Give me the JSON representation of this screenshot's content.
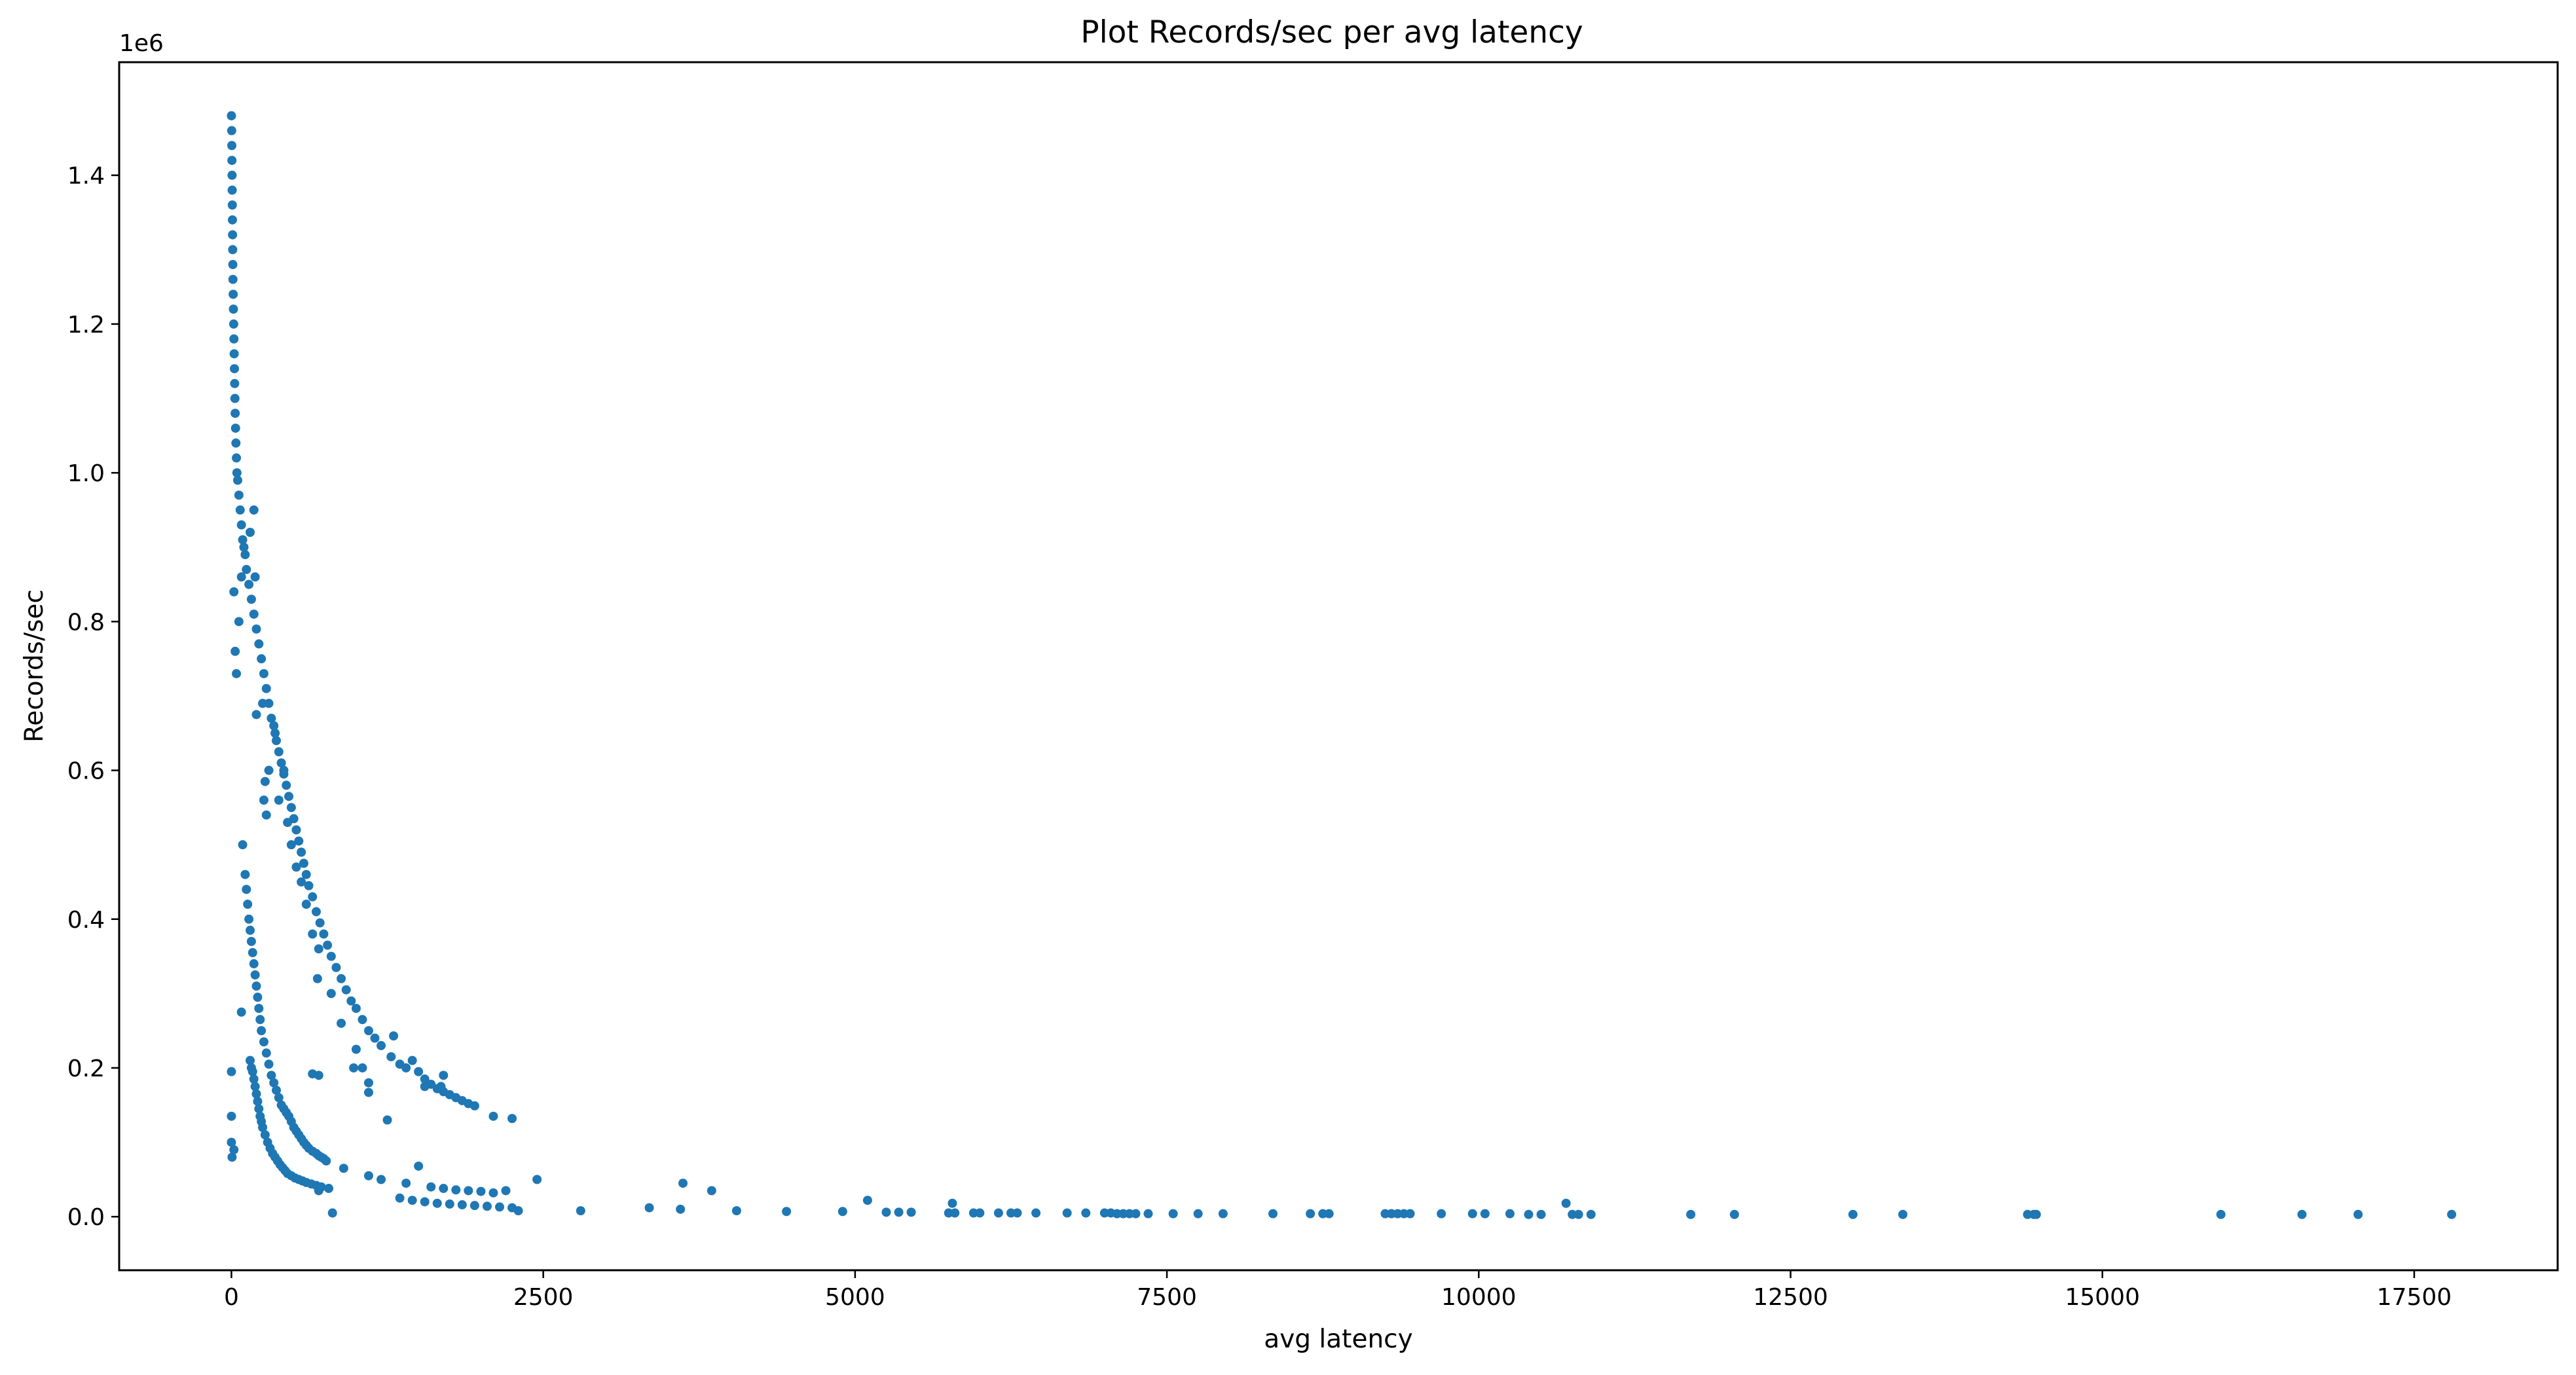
{
  "chart_data": {
    "type": "scatter",
    "title": "Plot Records/sec per avg latency",
    "xlabel": "avg latency",
    "ylabel": "Records/sec",
    "y_offset_label": "1e6",
    "xlim": [
      -900,
      18650
    ],
    "ylim": [
      -72000,
      1552000
    ],
    "xticks": [
      0,
      2500,
      5000,
      7500,
      10000,
      12500,
      15000,
      17500
    ],
    "xtick_labels": [
      "0",
      "2500",
      "5000",
      "7500",
      "10000",
      "12500",
      "15000",
      "17500"
    ],
    "yticks": [
      0,
      200000,
      400000,
      600000,
      800000,
      1000000,
      1200000,
      1400000
    ],
    "ytick_labels": [
      "0.0",
      "0.2",
      "0.4",
      "0.6",
      "0.8",
      "1.0",
      "1.2",
      "1.4"
    ],
    "grid": false,
    "legend": "none",
    "marker_color": "#1f77b4",
    "series": [
      {
        "points": [
          [
            0,
            1480000
          ],
          [
            2,
            1460000
          ],
          [
            3,
            1440000
          ],
          [
            4,
            1420000
          ],
          [
            5,
            1400000
          ],
          [
            6,
            1380000
          ],
          [
            7,
            1360000
          ],
          [
            8,
            1340000
          ],
          [
            9,
            1320000
          ],
          [
            10,
            1300000
          ],
          [
            11,
            1280000
          ],
          [
            12,
            1260000
          ],
          [
            14,
            1240000
          ],
          [
            16,
            1220000
          ],
          [
            18,
            1200000
          ],
          [
            20,
            1180000
          ],
          [
            22,
            1160000
          ],
          [
            24,
            1140000
          ],
          [
            26,
            1120000
          ],
          [
            28,
            1100000
          ],
          [
            30,
            1080000
          ],
          [
            33,
            1060000
          ],
          [
            36,
            1040000
          ],
          [
            40,
            1020000
          ],
          [
            44,
            1000000
          ],
          [
            50,
            990000
          ],
          [
            60,
            970000
          ],
          [
            70,
            950000
          ],
          [
            80,
            930000
          ],
          [
            90,
            910000
          ],
          [
            110,
            890000
          ],
          [
            120,
            870000
          ],
          [
            140,
            850000
          ],
          [
            160,
            830000
          ],
          [
            180,
            810000
          ],
          [
            200,
            790000
          ],
          [
            220,
            770000
          ],
          [
            240,
            750000
          ],
          [
            260,
            730000
          ],
          [
            280,
            710000
          ],
          [
            300,
            690000
          ],
          [
            320,
            670000
          ],
          [
            340,
            660000
          ],
          [
            360,
            640000
          ],
          [
            380,
            625000
          ],
          [
            400,
            610000
          ],
          [
            420,
            595000
          ],
          [
            440,
            580000
          ],
          [
            460,
            565000
          ],
          [
            480,
            550000
          ],
          [
            500,
            535000
          ],
          [
            520,
            520000
          ],
          [
            540,
            505000
          ],
          [
            560,
            490000
          ],
          [
            580,
            475000
          ],
          [
            600,
            460000
          ],
          [
            620,
            445000
          ],
          [
            650,
            430000
          ],
          [
            680,
            410000
          ],
          [
            710,
            395000
          ],
          [
            740,
            380000
          ],
          [
            770,
            365000
          ],
          [
            800,
            350000
          ],
          [
            840,
            335000
          ],
          [
            880,
            320000
          ],
          [
            920,
            305000
          ],
          [
            960,
            290000
          ],
          [
            1000,
            280000
          ],
          [
            1050,
            265000
          ],
          [
            1100,
            250000
          ],
          [
            1150,
            240000
          ],
          [
            1200,
            230000
          ],
          [
            1280,
            215000
          ],
          [
            1350,
            205000
          ],
          [
            1400,
            200000
          ],
          [
            1450,
            210000
          ],
          [
            1500,
            195000
          ],
          [
            1550,
            185000
          ],
          [
            1600,
            178000
          ],
          [
            1650,
            172000
          ],
          [
            1700,
            168000
          ],
          [
            1750,
            164000
          ],
          [
            1800,
            160000
          ],
          [
            1850,
            156000
          ],
          [
            1900,
            152000
          ],
          [
            1950,
            149000
          ],
          [
            2100,
            135000
          ],
          [
            2250,
            132000
          ],
          [
            1300,
            243000
          ],
          [
            1700,
            190000
          ],
          [
            1250,
            130000
          ],
          [
            1100,
            167000
          ],
          [
            20,
            840000
          ],
          [
            30,
            760000
          ],
          [
            40,
            730000
          ],
          [
            60,
            800000
          ],
          [
            80,
            860000
          ],
          [
            100,
            900000
          ],
          [
            150,
            920000
          ],
          [
            180,
            950000
          ],
          [
            190,
            860000
          ],
          [
            200,
            675000
          ],
          [
            250,
            690000
          ],
          [
            260,
            560000
          ],
          [
            280,
            540000
          ],
          [
            270,
            585000
          ],
          [
            300,
            600000
          ],
          [
            350,
            650000
          ],
          [
            380,
            560000
          ],
          [
            420,
            600000
          ],
          [
            450,
            530000
          ],
          [
            480,
            500000
          ],
          [
            520,
            470000
          ],
          [
            560,
            450000
          ],
          [
            600,
            420000
          ],
          [
            650,
            380000
          ],
          [
            700,
            360000
          ],
          [
            690,
            320000
          ],
          [
            800,
            300000
          ],
          [
            880,
            260000
          ],
          [
            1000,
            225000
          ],
          [
            1050,
            200000
          ],
          [
            1100,
            180000
          ],
          [
            1550,
            175000
          ],
          [
            1680,
            175000
          ],
          [
            980,
            200000
          ],
          [
            90,
            500000
          ],
          [
            110,
            460000
          ],
          [
            120,
            440000
          ],
          [
            130,
            420000
          ],
          [
            140,
            400000
          ],
          [
            150,
            385000
          ],
          [
            160,
            370000
          ],
          [
            170,
            355000
          ],
          [
            180,
            340000
          ],
          [
            190,
            325000
          ],
          [
            200,
            310000
          ],
          [
            210,
            295000
          ],
          [
            220,
            280000
          ],
          [
            230,
            265000
          ],
          [
            240,
            250000
          ],
          [
            260,
            235000
          ],
          [
            280,
            220000
          ],
          [
            300,
            205000
          ],
          [
            320,
            190000
          ],
          [
            340,
            180000
          ],
          [
            360,
            170000
          ],
          [
            380,
            160000
          ],
          [
            400,
            150000
          ],
          [
            420,
            145000
          ],
          [
            440,
            140000
          ],
          [
            460,
            135000
          ],
          [
            480,
            128000
          ],
          [
            500,
            120000
          ],
          [
            520,
            115000
          ],
          [
            540,
            110000
          ],
          [
            560,
            105000
          ],
          [
            580,
            100000
          ],
          [
            600,
            96000
          ],
          [
            620,
            92000
          ],
          [
            650,
            88000
          ],
          [
            680,
            85000
          ],
          [
            700,
            82000
          ],
          [
            720,
            80000
          ],
          [
            740,
            78000
          ],
          [
            760,
            75000
          ],
          [
            80,
            275000
          ],
          [
            650,
            192000
          ],
          [
            0,
            195000
          ],
          [
            0,
            135000
          ],
          [
            0,
            100000
          ],
          [
            5,
            80000
          ],
          [
            20,
            90000
          ],
          [
            700,
            190000
          ],
          [
            150,
            210000
          ],
          [
            160,
            200000
          ],
          [
            170,
            195000
          ],
          [
            180,
            185000
          ],
          [
            190,
            175000
          ],
          [
            200,
            165000
          ],
          [
            210,
            155000
          ],
          [
            220,
            145000
          ],
          [
            230,
            135000
          ],
          [
            240,
            128000
          ],
          [
            250,
            120000
          ],
          [
            270,
            110000
          ],
          [
            290,
            100000
          ],
          [
            310,
            92000
          ],
          [
            330,
            85000
          ],
          [
            350,
            80000
          ],
          [
            370,
            75000
          ],
          [
            390,
            70000
          ],
          [
            410,
            66000
          ],
          [
            430,
            62000
          ],
          [
            450,
            58000
          ],
          [
            480,
            55000
          ],
          [
            510,
            52000
          ],
          [
            540,
            50000
          ],
          [
            570,
            48000
          ],
          [
            600,
            46000
          ],
          [
            640,
            44000
          ],
          [
            680,
            42000
          ],
          [
            720,
            40000
          ],
          [
            780,
            38000
          ],
          [
            700,
            35000
          ],
          [
            810,
            5000
          ],
          [
            900,
            65000
          ],
          [
            1100,
            55000
          ],
          [
            1200,
            50000
          ],
          [
            1400,
            45000
          ],
          [
            1500,
            68000
          ],
          [
            1600,
            40000
          ],
          [
            1700,
            38000
          ],
          [
            1800,
            36000
          ],
          [
            1900,
            35000
          ],
          [
            2000,
            34000
          ],
          [
            2100,
            32000
          ],
          [
            2200,
            35000
          ],
          [
            2300,
            8000
          ],
          [
            1350,
            25000
          ],
          [
            1450,
            22000
          ],
          [
            1550,
            20000
          ],
          [
            1650,
            18000
          ],
          [
            1750,
            17000
          ],
          [
            1850,
            16000
          ],
          [
            1950,
            15000
          ],
          [
            2050,
            14000
          ],
          [
            2150,
            13000
          ],
          [
            2250,
            12000
          ],
          [
            2450,
            50000
          ],
          [
            2800,
            8000
          ],
          [
            3350,
            12000
          ],
          [
            3600,
            10000
          ],
          [
            3620,
            45000
          ],
          [
            3850,
            35000
          ],
          [
            4050,
            8000
          ],
          [
            4450,
            7000
          ],
          [
            4900,
            7000
          ],
          [
            5100,
            22000
          ],
          [
            5250,
            6000
          ],
          [
            5350,
            6000
          ],
          [
            5450,
            6000
          ],
          [
            5750,
            5000
          ],
          [
            5800,
            5000
          ],
          [
            5780,
            18000
          ],
          [
            5950,
            5000
          ],
          [
            6000,
            5000
          ],
          [
            6150,
            5000
          ],
          [
            6250,
            5000
          ],
          [
            6300,
            5000
          ],
          [
            6450,
            5000
          ],
          [
            6700,
            5000
          ],
          [
            6850,
            5000
          ],
          [
            7000,
            5000
          ],
          [
            7050,
            5000
          ],
          [
            7100,
            4000
          ],
          [
            7150,
            4000
          ],
          [
            7200,
            4000
          ],
          [
            7250,
            4000
          ],
          [
            7350,
            4000
          ],
          [
            7550,
            4000
          ],
          [
            7750,
            4000
          ],
          [
            7950,
            4000
          ],
          [
            8350,
            4000
          ],
          [
            8650,
            4000
          ],
          [
            8750,
            4000
          ],
          [
            8800,
            4000
          ],
          [
            9250,
            4000
          ],
          [
            9300,
            4000
          ],
          [
            9350,
            4000
          ],
          [
            9400,
            4000
          ],
          [
            9450,
            4000
          ],
          [
            9700,
            4000
          ],
          [
            9950,
            4000
          ],
          [
            10050,
            4000
          ],
          [
            10250,
            4000
          ],
          [
            10400,
            3000
          ],
          [
            10500,
            3000
          ],
          [
            10700,
            18000
          ],
          [
            10750,
            3000
          ],
          [
            10800,
            3000
          ],
          [
            10900,
            3000
          ],
          [
            11700,
            3000
          ],
          [
            12050,
            3000
          ],
          [
            13000,
            3000
          ],
          [
            13400,
            3000
          ],
          [
            14400,
            3000
          ],
          [
            14450,
            3000
          ],
          [
            14470,
            3000
          ],
          [
            15950,
            3000
          ],
          [
            16600,
            3000
          ],
          [
            17050,
            3000
          ],
          [
            17800,
            3000
          ]
        ]
      }
    ]
  }
}
